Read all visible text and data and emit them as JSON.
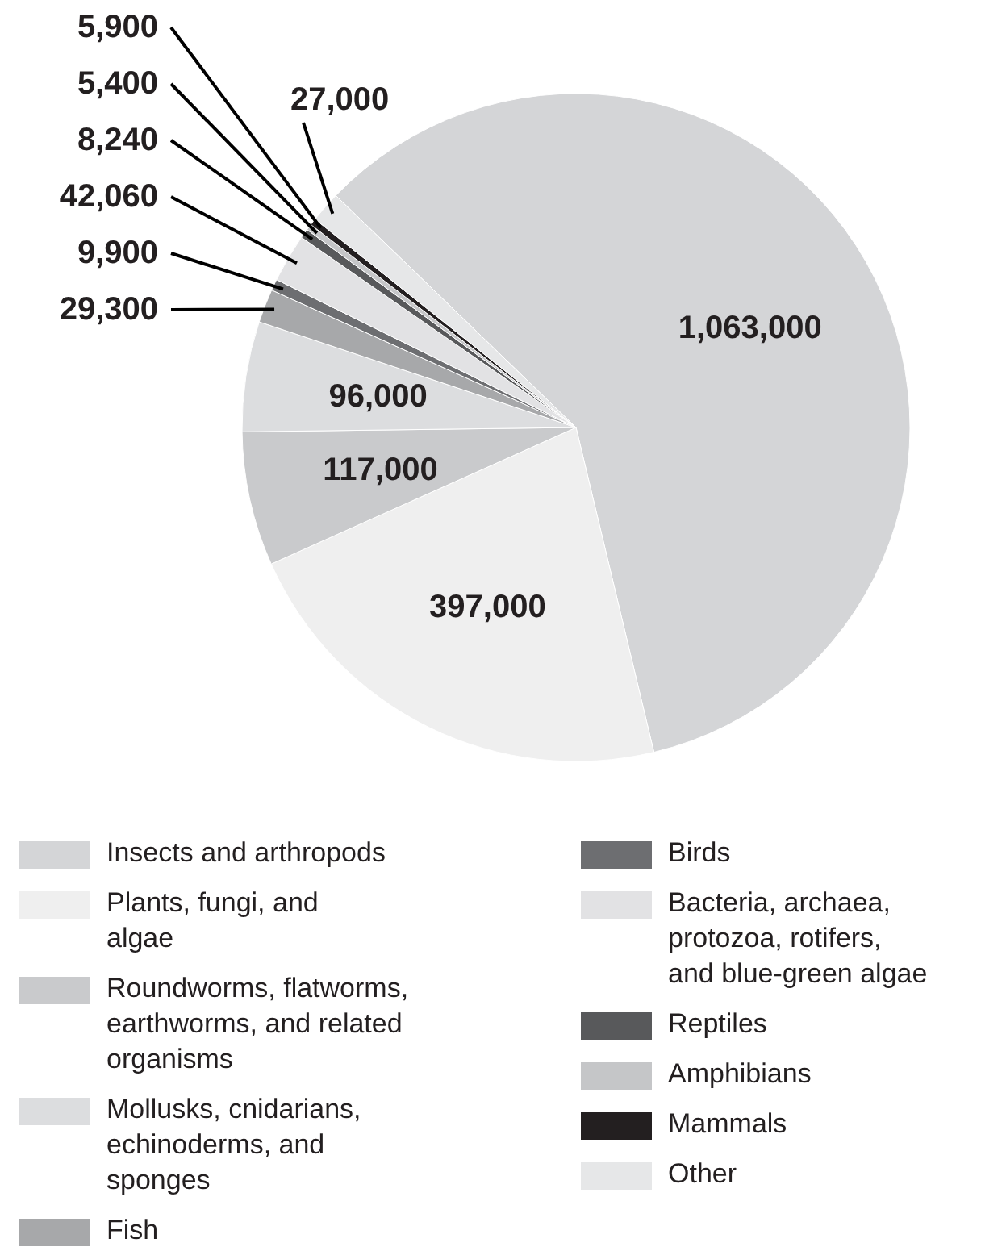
{
  "chart_data": {
    "type": "pie",
    "categories": [
      "Insects and arthropods",
      "Plants, fungi, and algae",
      "Roundworms, flatworms, earthworms, and related organisms",
      "Mollusks, cnidarians, echinoderms, and sponges",
      "Fish",
      "Birds",
      "Bacteria, archaea, protozoa, rotifers, and blue-green algae",
      "Reptiles",
      "Amphibians",
      "Mammals",
      "Other"
    ],
    "values": [
      1063000,
      397000,
      117000,
      96000,
      29300,
      9900,
      42060,
      8240,
      5400,
      5900,
      27000
    ],
    "colors": [
      "#d4d5d7",
      "#efefef",
      "#c9cacc",
      "#dcdddf",
      "#a7a8aa",
      "#6d6e71",
      "#e2e2e4",
      "#58595b",
      "#c5c6c8",
      "#231f20",
      "#e6e7e8"
    ],
    "value_labels": [
      "1,063,000",
      "397,000",
      "117,000",
      "96,000",
      "29,300",
      "9,900",
      "42,060",
      "8,240",
      "5,400",
      "5,900",
      "27,000"
    ],
    "legend": "bottom"
  }
}
